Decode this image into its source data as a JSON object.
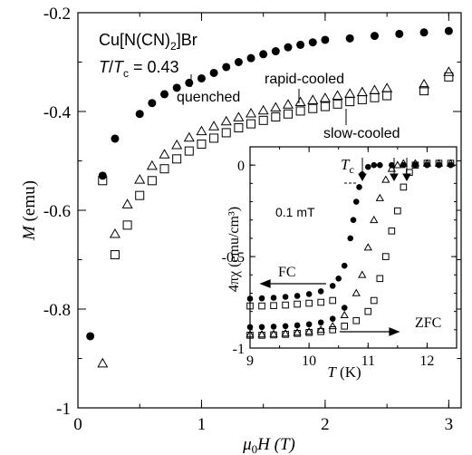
{
  "chart_data": [
    {
      "type": "scatter",
      "xlabel_main": "μ",
      "xlabel_sub": "0",
      "xlabel_rest": "H (T)",
      "ylabel_main": "M",
      "ylabel_rest": " (emu)",
      "xlim": [
        0,
        3.1
      ],
      "ylim": [
        -1.0,
        -0.2
      ],
      "xticks": [
        0,
        1,
        2,
        3
      ],
      "xtick_labels": [
        "0",
        "1",
        "2",
        "3"
      ],
      "yticks": [
        -1.0,
        -0.8,
        -0.6,
        -0.4,
        -0.2
      ],
      "ytick_labels": [
        "-1",
        "-0.8",
        "-0.6",
        "-0.4",
        "-0.2"
      ],
      "compound": {
        "part1": "Cu[N(CN)",
        "sub": "2",
        "part2": "]Br"
      },
      "ratio": {
        "t": "T",
        "slash": "/",
        "tc": "T",
        "csub": "c",
        "value": " = 0.43"
      },
      "series": [
        {
          "name": "quenched",
          "marker": "filled-circle",
          "x": [
            0.1,
            0.2,
            0.3,
            0.5,
            0.6,
            0.7,
            0.8,
            0.9,
            1.0,
            1.1,
            1.2,
            1.3,
            1.4,
            1.5,
            1.6,
            1.7,
            1.8,
            1.9,
            2.0,
            2.2,
            2.4,
            2.6,
            2.8,
            3.0
          ],
          "y": [
            -0.855,
            -0.53,
            -0.455,
            -0.405,
            -0.383,
            -0.365,
            -0.352,
            -0.342,
            -0.333,
            -0.322,
            -0.31,
            -0.3,
            -0.292,
            -0.284,
            -0.278,
            -0.27,
            -0.265,
            -0.26,
            -0.255,
            -0.252,
            -0.247,
            -0.243,
            -0.24,
            -0.237
          ]
        },
        {
          "name": "rapid-cooled",
          "marker": "open-triangle",
          "x": [
            0.2,
            0.3,
            0.4,
            0.5,
            0.6,
            0.7,
            0.8,
            0.9,
            1.0,
            1.1,
            1.2,
            1.3,
            1.4,
            1.5,
            1.6,
            1.7,
            1.8,
            1.9,
            2.0,
            2.1,
            2.2,
            2.3,
            2.4,
            2.5,
            2.8,
            3.0
          ],
          "y": [
            -0.91,
            -0.648,
            -0.588,
            -0.538,
            -0.51,
            -0.487,
            -0.468,
            -0.453,
            -0.44,
            -0.43,
            -0.42,
            -0.412,
            -0.404,
            -0.398,
            -0.392,
            -0.386,
            -0.381,
            -0.377,
            -0.373,
            -0.368,
            -0.364,
            -0.361,
            -0.357,
            -0.353,
            -0.345,
            -0.32
          ]
        },
        {
          "name": "slow-cooled",
          "marker": "open-square",
          "x": [
            0.2,
            0.3,
            0.4,
            0.5,
            0.6,
            0.7,
            0.8,
            0.9,
            1.0,
            1.1,
            1.2,
            1.3,
            1.4,
            1.5,
            1.6,
            1.7,
            1.8,
            1.9,
            2.0,
            2.1,
            2.2,
            2.3,
            2.4,
            2.5,
            2.8,
            3.0
          ],
          "y": [
            -0.54,
            -0.69,
            -0.63,
            -0.57,
            -0.54,
            -0.516,
            -0.496,
            -0.48,
            -0.466,
            -0.454,
            -0.443,
            -0.433,
            -0.425,
            -0.418,
            -0.411,
            -0.405,
            -0.399,
            -0.394,
            -0.39,
            -0.385,
            -0.38,
            -0.376,
            -0.372,
            -0.368,
            -0.358,
            -0.33
          ]
        }
      ],
      "annotations": [
        "quenched",
        "rapid-cooled",
        "slow-cooled"
      ]
    },
    {
      "type": "scatter",
      "inset": true,
      "xlabel_main": "T",
      "xlabel_rest": " (K)",
      "ylabel": "4πχ (emu/cm³)",
      "xlim": [
        9,
        12.5
      ],
      "ylim": [
        -1.0,
        0.1
      ],
      "xticks": [
        9,
        10,
        11,
        12
      ],
      "xtick_labels": [
        "9",
        "10",
        "11",
        "12"
      ],
      "yticks": [
        0,
        -0.5,
        -1.0
      ],
      "ytick_labels": [
        "0",
        "-0.5",
        "-1"
      ],
      "field_label": "0.1 mT",
      "tc_label": {
        "t": "T",
        "sub": "c"
      },
      "fc_label": "FC",
      "zfc_label": "ZFC",
      "series": [
        {
          "name": "quenched FC",
          "marker": "filled-circle",
          "x": [
            9.0,
            9.2,
            9.4,
            9.6,
            9.8,
            10.0,
            10.2,
            10.4,
            10.5,
            10.6,
            10.7,
            10.75,
            10.8,
            10.85,
            10.9,
            11.0,
            11.1,
            11.2,
            11.4,
            11.6,
            11.8,
            12.0,
            12.2,
            12.4
          ],
          "y": [
            -0.73,
            -0.728,
            -0.725,
            -0.72,
            -0.715,
            -0.705,
            -0.69,
            -0.66,
            -0.62,
            -0.55,
            -0.4,
            -0.3,
            -0.2,
            -0.12,
            -0.05,
            -0.01,
            0.0,
            0.0,
            0.0,
            0.0,
            0.0,
            0.0,
            0.0,
            0.0
          ]
        },
        {
          "name": "quenched ZFC",
          "marker": "filled-circle",
          "x": [
            9.0,
            9.2,
            9.4,
            9.6,
            9.8,
            10.0,
            10.2,
            10.4,
            10.6
          ],
          "y": [
            -0.885,
            -0.885,
            -0.883,
            -0.88,
            -0.876,
            -0.87,
            -0.86,
            -0.84,
            -0.78
          ]
        },
        {
          "name": "rapid-cooled",
          "marker": "open-triangle",
          "x": [
            9.0,
            9.2,
            9.4,
            9.6,
            9.8,
            10.0,
            10.2,
            10.4,
            10.6,
            10.8,
            10.9,
            11.0,
            11.1,
            11.2,
            11.3,
            11.4,
            11.5,
            11.6,
            11.8,
            12.0,
            12.2,
            12.4
          ],
          "y": [
            -0.925,
            -0.925,
            -0.923,
            -0.92,
            -0.915,
            -0.91,
            -0.9,
            -0.88,
            -0.82,
            -0.7,
            -0.6,
            -0.45,
            -0.3,
            -0.18,
            -0.08,
            -0.02,
            0.0,
            0.01,
            0.01,
            0.01,
            0.01,
            0.01
          ]
        },
        {
          "name": "slow-cooled",
          "marker": "open-square",
          "x": [
            9.0,
            9.2,
            9.4,
            9.6,
            9.8,
            10.0,
            10.2,
            10.4,
            10.6,
            10.8,
            11.0,
            11.1,
            11.2,
            11.3,
            11.4,
            11.5,
            11.6,
            11.7,
            11.8,
            12.0,
            12.2,
            12.4
          ],
          "y": [
            -0.93,
            -0.93,
            -0.928,
            -0.925,
            -0.92,
            -0.915,
            -0.91,
            -0.9,
            -0.88,
            -0.85,
            -0.8,
            -0.74,
            -0.62,
            -0.5,
            -0.36,
            -0.25,
            -0.12,
            -0.04,
            0.0,
            0.01,
            0.01,
            0.01
          ]
        },
        {
          "name": "slow-cooled ZFC",
          "marker": "open-square",
          "x": [
            9.0,
            9.2,
            9.4,
            9.6,
            9.8,
            10.0,
            10.2,
            10.4
          ],
          "y": [
            -0.77,
            -0.77,
            -0.768,
            -0.765,
            -0.76,
            -0.755,
            -0.75,
            -0.74
          ]
        }
      ]
    }
  ]
}
